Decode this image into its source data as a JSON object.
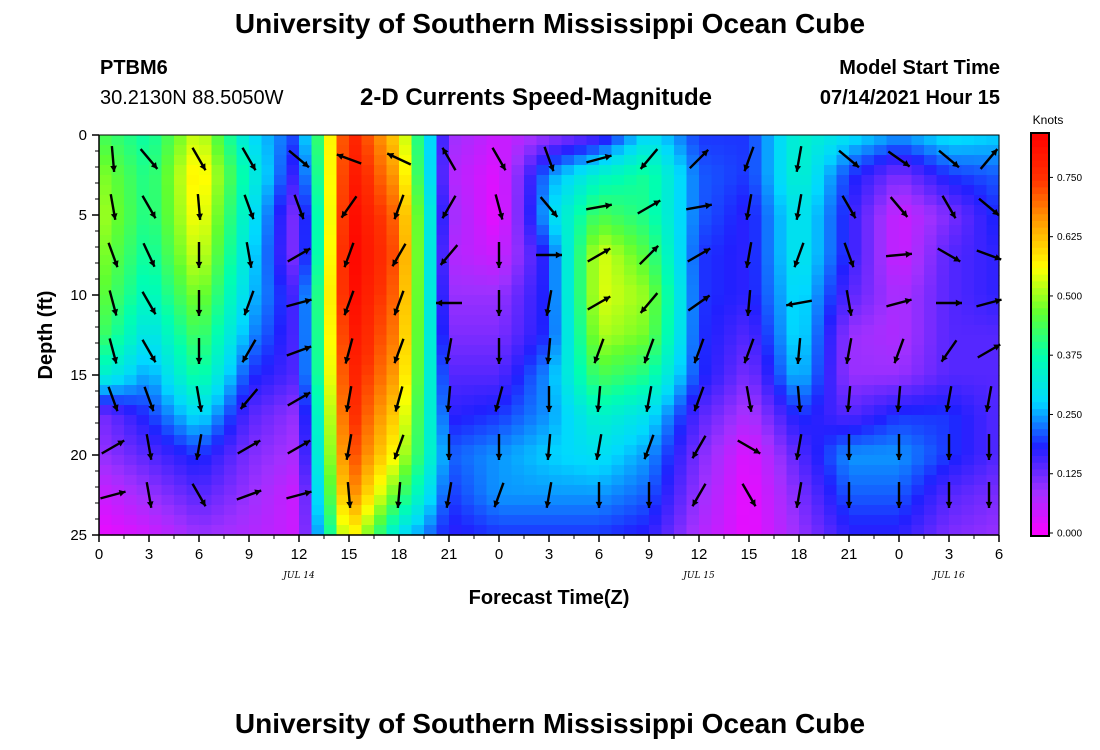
{
  "header": {
    "title": "University of Southern Mississippi Ocean Cube",
    "station": "PTBM6",
    "coords": "30.2130N  88.5050W",
    "subtitle": "2-D Currents Speed-Magnitude",
    "model_start_label": "Model Start Time",
    "model_start_value": "07/14/2021 Hour 15"
  },
  "footer": {
    "title": "University of Southern Mississippi Ocean Cube"
  },
  "colors": {
    "scale": [
      "#ff00ff",
      "#a030ff",
      "#2020ff",
      "#00d8ff",
      "#00ffb0",
      "#60ff30",
      "#ffff00",
      "#ffa000",
      "#ff3000",
      "#ff0000"
    ],
    "arrow": "#000000",
    "background": "#ffffff"
  },
  "chart_data": {
    "type": "heatmap",
    "title": "2-D Currents Speed-Magnitude",
    "xlabel": "Forecast Time(Z)",
    "ylabel": "Depth (ft)",
    "x_hours_from_jul14_00": [
      0,
      3,
      6,
      9,
      12,
      15,
      18,
      21,
      24,
      27,
      30,
      33,
      36,
      39,
      42,
      45,
      48,
      51,
      54
    ],
    "x_tick_labels": [
      "0",
      "3",
      "6",
      "9",
      "12",
      "15",
      "18",
      "21",
      "0",
      "3",
      "6",
      "9",
      "12",
      "15",
      "18",
      "21",
      "0",
      "3",
      "6"
    ],
    "date_labels": [
      {
        "label": "JUL 14",
        "hour": 12
      },
      {
        "label": "JUL 15",
        "hour": 36
      },
      {
        "label": "JUL 16",
        "hour": 51
      }
    ],
    "y_ticks": [
      0,
      5,
      10,
      15,
      20,
      25
    ],
    "ylim": [
      0,
      25
    ],
    "y_inverted": true,
    "xlim": [
      0,
      54
    ],
    "colorbar": {
      "unit": "Knots",
      "ticks": [
        "0.000",
        "0.125",
        "0.250",
        "0.375",
        "0.500",
        "0.625",
        "0.750"
      ],
      "range": [
        0,
        0.85
      ]
    },
    "speed_field": {
      "description_of_axes": "rows = depth (ft) 0..25, columns = forecast hour 0..54, value = speed (knots)",
      "depths": [
        0,
        2.5,
        5,
        7.5,
        10,
        12.5,
        15,
        17.5,
        20,
        22.5,
        25
      ],
      "hours": [
        0,
        3,
        6,
        9,
        12,
        15,
        18,
        21,
        24,
        27,
        30,
        33,
        36,
        39,
        42,
        45,
        48,
        51,
        54
      ],
      "values": [
        [
          0.45,
          0.38,
          0.55,
          0.3,
          0.2,
          0.8,
          0.6,
          0.1,
          0.05,
          0.1,
          0.15,
          0.3,
          0.2,
          0.2,
          0.35,
          0.3,
          0.25,
          0.3,
          0.28
        ],
        [
          0.5,
          0.4,
          0.6,
          0.35,
          0.15,
          0.82,
          0.65,
          0.08,
          0.03,
          0.25,
          0.35,
          0.4,
          0.22,
          0.2,
          0.35,
          0.2,
          0.12,
          0.2,
          0.22
        ],
        [
          0.52,
          0.4,
          0.58,
          0.32,
          0.1,
          0.84,
          0.7,
          0.1,
          0.02,
          0.28,
          0.45,
          0.4,
          0.22,
          0.18,
          0.32,
          0.18,
          0.05,
          0.12,
          0.2
        ],
        [
          0.5,
          0.38,
          0.55,
          0.3,
          0.1,
          0.85,
          0.72,
          0.08,
          0.05,
          0.2,
          0.55,
          0.45,
          0.2,
          0.18,
          0.32,
          0.18,
          0.05,
          0.15,
          0.18
        ],
        [
          0.48,
          0.35,
          0.5,
          0.28,
          0.15,
          0.84,
          0.7,
          0.1,
          0.1,
          0.2,
          0.55,
          0.5,
          0.2,
          0.18,
          0.3,
          0.15,
          0.08,
          0.15,
          0.18
        ],
        [
          0.45,
          0.3,
          0.45,
          0.25,
          0.15,
          0.82,
          0.68,
          0.12,
          0.12,
          0.2,
          0.52,
          0.48,
          0.2,
          0.15,
          0.3,
          0.1,
          0.08,
          0.15,
          0.15
        ],
        [
          0.35,
          0.25,
          0.4,
          0.2,
          0.15,
          0.8,
          0.65,
          0.15,
          0.15,
          0.25,
          0.45,
          0.4,
          0.2,
          0.12,
          0.28,
          0.1,
          0.1,
          0.15,
          0.15
        ],
        [
          0.12,
          0.2,
          0.3,
          0.15,
          0.1,
          0.78,
          0.6,
          0.18,
          0.2,
          0.25,
          0.35,
          0.3,
          0.15,
          0.08,
          0.2,
          0.15,
          0.2,
          0.2,
          0.15
        ],
        [
          0.1,
          0.15,
          0.2,
          0.12,
          0.08,
          0.75,
          0.55,
          0.22,
          0.25,
          0.28,
          0.3,
          0.25,
          0.12,
          0.03,
          0.15,
          0.25,
          0.25,
          0.2,
          0.15
        ],
        [
          0.05,
          0.1,
          0.15,
          0.1,
          0.05,
          0.7,
          0.45,
          0.2,
          0.25,
          0.25,
          0.25,
          0.22,
          0.1,
          0.02,
          0.12,
          0.22,
          0.22,
          0.15,
          0.12
        ],
        [
          0.02,
          0.05,
          0.1,
          0.08,
          0.05,
          0.6,
          0.3,
          0.18,
          0.2,
          0.2,
          0.2,
          0.18,
          0.08,
          0.02,
          0.1,
          0.18,
          0.18,
          0.12,
          0.1
        ]
      ]
    },
    "vectors": {
      "description_of_axes": "arrow direction in degrees (0 = up/north, clockwise), per depth row and hour column",
      "depths": [
        1.5,
        4.5,
        7.5,
        10.5,
        13.5,
        16.5,
        19.5,
        22.5
      ],
      "hours": [
        0,
        3,
        6,
        9,
        12,
        15,
        18,
        21,
        24,
        27,
        30,
        33,
        36,
        39,
        42,
        45,
        48,
        51,
        54
      ],
      "directions": [
        [
          175,
          140,
          150,
          150,
          130,
          290,
          295,
          330,
          150,
          160,
          75,
          220,
          45,
          200,
          190,
          130,
          125,
          130,
          40
        ],
        [
          170,
          150,
          175,
          160,
          160,
          215,
          200,
          210,
          165,
          140,
          80,
          60,
          80,
          190,
          190,
          150,
          140,
          150,
          130
        ],
        [
          160,
          155,
          180,
          170,
          60,
          200,
          210,
          220,
          180,
          90,
          60,
          45,
          60,
          190,
          200,
          160,
          85,
          120,
          110
        ],
        [
          165,
          150,
          180,
          200,
          75,
          200,
          200,
          270,
          180,
          190,
          60,
          220,
          55,
          185,
          260,
          170,
          75,
          90,
          75
        ],
        [
          165,
          150,
          180,
          210,
          70,
          195,
          200,
          190,
          180,
          185,
          200,
          200,
          200,
          200,
          185,
          190,
          200,
          215,
          60
        ],
        [
          160,
          160,
          170,
          220,
          60,
          190,
          195,
          185,
          195,
          180,
          185,
          190,
          200,
          170,
          175,
          185,
          185,
          190,
          190
        ],
        [
          60,
          170,
          190,
          60,
          60,
          190,
          200,
          180,
          180,
          185,
          190,
          200,
          210,
          120,
          190,
          180,
          180,
          180,
          180
        ],
        [
          75,
          170,
          150,
          70,
          75,
          175,
          185,
          190,
          200,
          190,
          180,
          180,
          210,
          150,
          190,
          180,
          180,
          180,
          180
        ]
      ]
    }
  }
}
